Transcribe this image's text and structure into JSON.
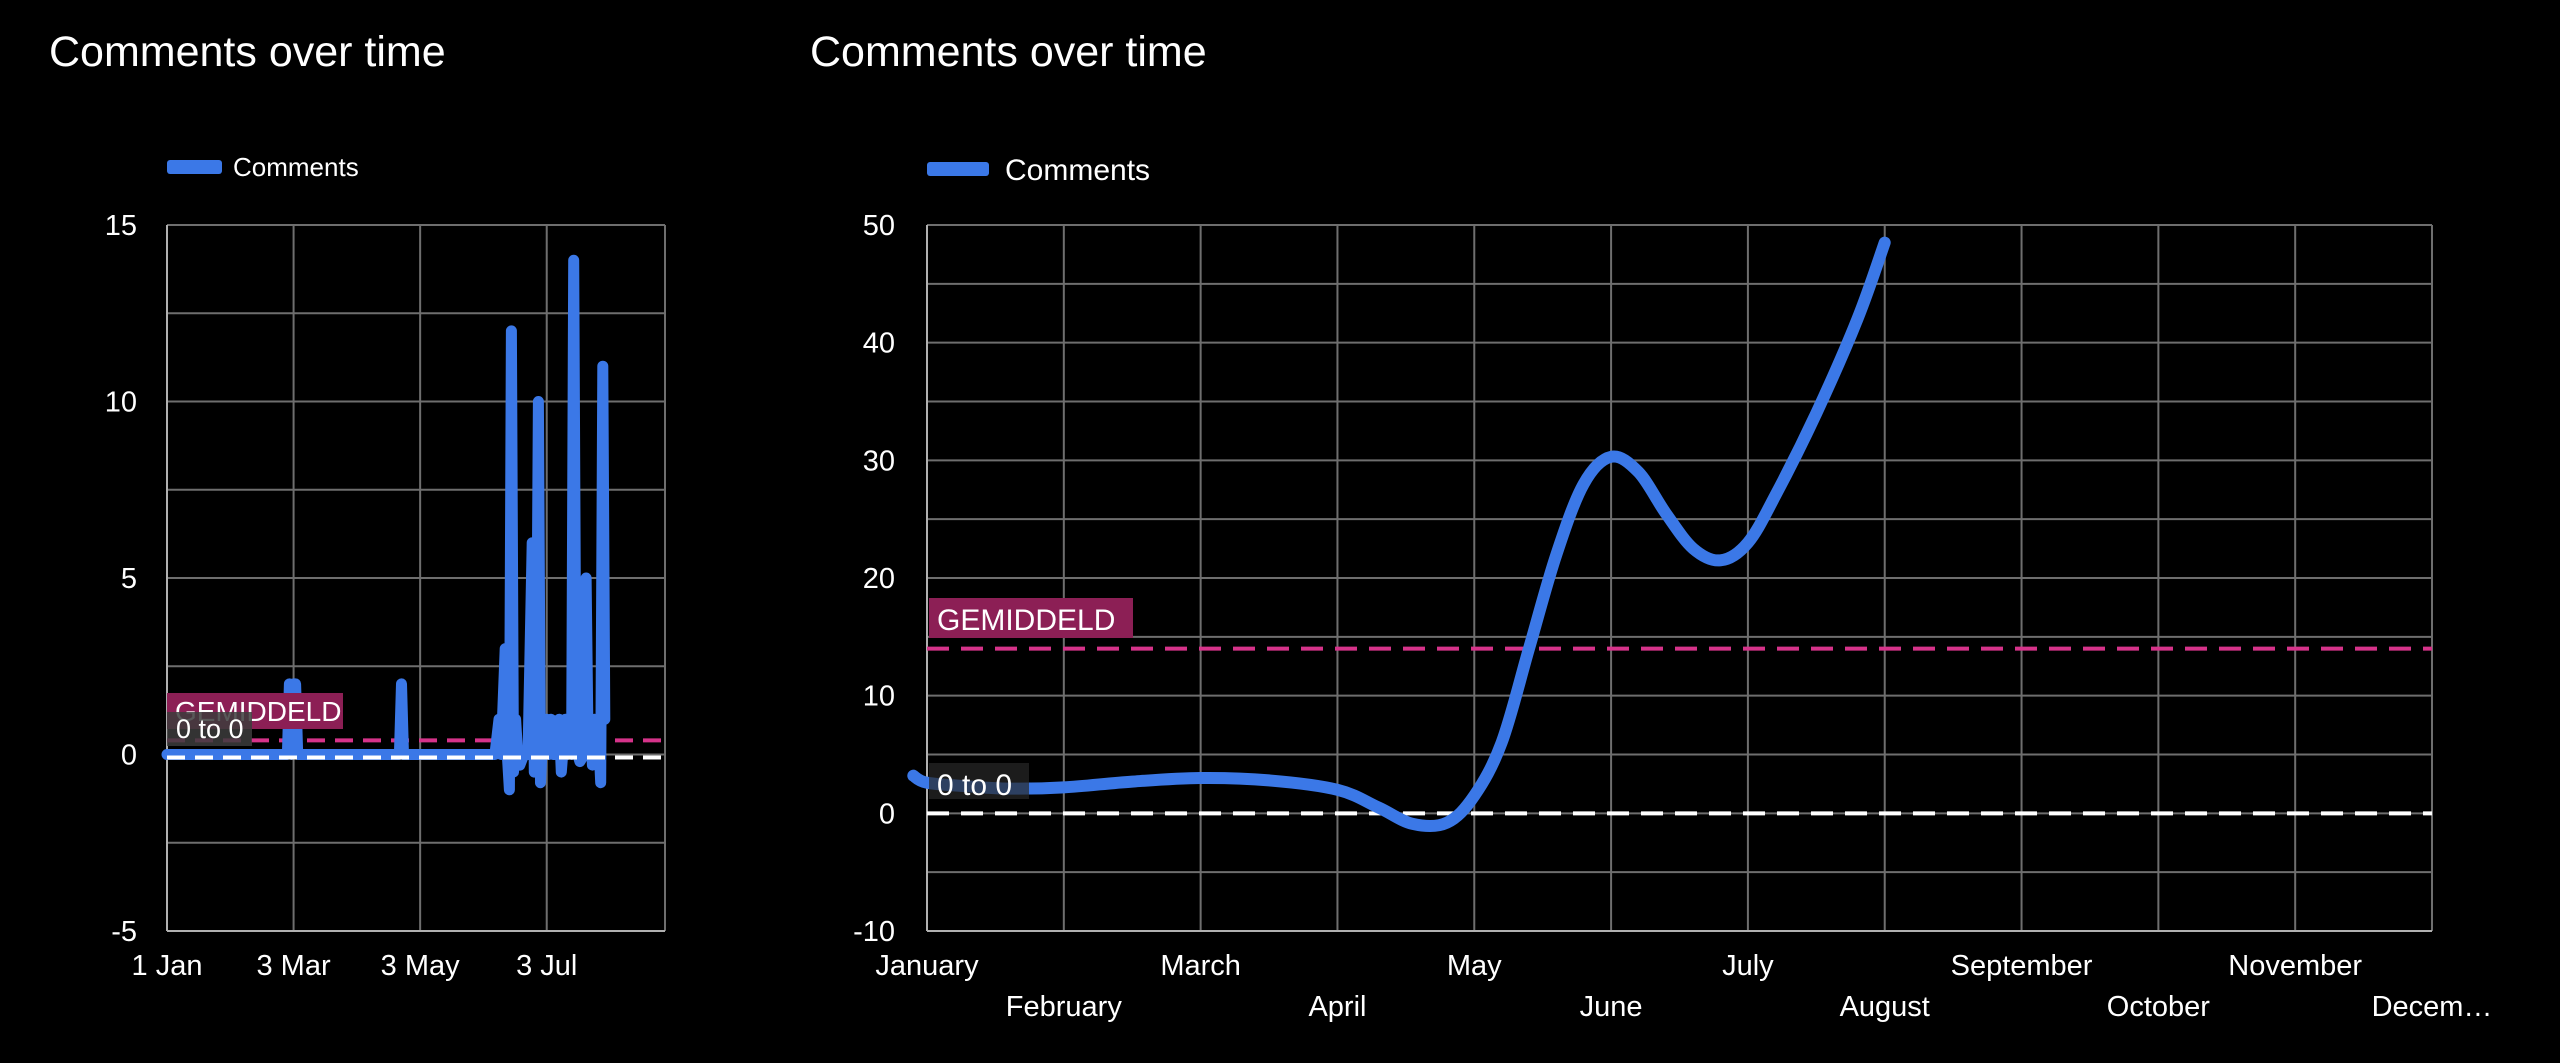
{
  "colors": {
    "background": "#000000",
    "series": "#3b78e7",
    "grid": "#6e6e6e",
    "axis": "#b0b0b0",
    "average_line": "#d6338a",
    "average_label_bg": "#8c1f55",
    "range_line": "#ffffff",
    "text": "#ffffff"
  },
  "chart_data": [
    {
      "type": "line",
      "title": "Comments over time",
      "legend": [
        "Comments"
      ],
      "legend_position": "top-left",
      "grid": true,
      "x_type": "date",
      "x_tick_labels": [
        "1 Jan",
        "3 Mar",
        "3 May",
        "3 Jul"
      ],
      "x_ticks": [
        "2023-01-01",
        "2023-03-03",
        "2023-05-03",
        "2023-07-03"
      ],
      "xlim": [
        "2023-01-01",
        "2023-08-29"
      ],
      "ylim": [
        -5,
        15
      ],
      "y_ticks": [
        -5,
        0,
        5,
        10,
        15
      ],
      "y_tick_labels": [
        "-5",
        "0",
        "5",
        "10",
        "15"
      ],
      "series": [
        {
          "name": "Comments",
          "points": [
            [
              "2023-01-01",
              0
            ],
            [
              "2023-01-08",
              0
            ],
            [
              "2023-01-14",
              0
            ],
            [
              "2023-01-20",
              0
            ],
            [
              "2023-01-25",
              0
            ],
            [
              "2023-01-30",
              0
            ],
            [
              "2023-02-05",
              0
            ],
            [
              "2023-02-12",
              0
            ],
            [
              "2023-02-18",
              0
            ],
            [
              "2023-02-24",
              0
            ],
            [
              "2023-02-28",
              0
            ],
            [
              "2023-03-01",
              2
            ],
            [
              "2023-03-02",
              0
            ],
            [
              "2023-03-03",
              2
            ],
            [
              "2023-03-04",
              2
            ],
            [
              "2023-03-05",
              0
            ],
            [
              "2023-03-12",
              0
            ],
            [
              "2023-03-20",
              0
            ],
            [
              "2023-03-28",
              0
            ],
            [
              "2023-04-05",
              0
            ],
            [
              "2023-04-14",
              0
            ],
            [
              "2023-04-23",
              0
            ],
            [
              "2023-04-24",
              2
            ],
            [
              "2023-04-25",
              0
            ],
            [
              "2023-05-03",
              0
            ],
            [
              "2023-05-12",
              0
            ],
            [
              "2023-05-22",
              0
            ],
            [
              "2023-06-01",
              0
            ],
            [
              "2023-06-08",
              0
            ],
            [
              "2023-06-10",
              1
            ],
            [
              "2023-06-11",
              0
            ],
            [
              "2023-06-13",
              3
            ],
            [
              "2023-06-14",
              0
            ],
            [
              "2023-06-15",
              -1
            ],
            [
              "2023-06-16",
              12
            ],
            [
              "2023-06-17",
              -0.5
            ],
            [
              "2023-06-18",
              1
            ],
            [
              "2023-06-19",
              0
            ],
            [
              "2023-06-20",
              -0.3
            ],
            [
              "2023-06-22",
              0
            ],
            [
              "2023-06-24",
              0
            ],
            [
              "2023-06-26",
              6
            ],
            [
              "2023-06-27",
              -0.5
            ],
            [
              "2023-06-28",
              1
            ],
            [
              "2023-06-29",
              10
            ],
            [
              "2023-06-30",
              -0.8
            ],
            [
              "2023-07-01",
              0.5
            ],
            [
              "2023-07-03",
              1
            ],
            [
              "2023-07-04",
              0
            ],
            [
              "2023-07-05",
              1
            ],
            [
              "2023-07-06",
              0
            ],
            [
              "2023-07-08",
              0
            ],
            [
              "2023-07-09",
              1
            ],
            [
              "2023-07-10",
              -0.5
            ],
            [
              "2023-07-12",
              1
            ],
            [
              "2023-07-13",
              0
            ],
            [
              "2023-07-14",
              0.8
            ],
            [
              "2023-07-15",
              0
            ],
            [
              "2023-07-16",
              14
            ],
            [
              "2023-07-17",
              2
            ],
            [
              "2023-07-18",
              0
            ],
            [
              "2023-07-19",
              -0.2
            ],
            [
              "2023-07-21",
              0
            ],
            [
              "2023-07-22",
              5
            ],
            [
              "2023-07-23",
              0
            ],
            [
              "2023-07-24",
              1
            ],
            [
              "2023-07-25",
              -0.3
            ],
            [
              "2023-07-26",
              1
            ],
            [
              "2023-07-27",
              0
            ],
            [
              "2023-07-28",
              0.5
            ],
            [
              "2023-07-29",
              -0.8
            ],
            [
              "2023-07-30",
              11
            ],
            [
              "2023-07-31",
              1
            ]
          ]
        }
      ],
      "reference_lines": [
        {
          "label": "GEMIDDELD",
          "value": 0.4,
          "style": "dashed"
        },
        {
          "label": "0 to 0",
          "value": 0,
          "style": "dashed"
        }
      ]
    },
    {
      "type": "line",
      "title": "Comments over time",
      "legend": [
        "Comments"
      ],
      "legend_position": "top-left",
      "grid": true,
      "categories": [
        "January",
        "February",
        "March",
        "April",
        "May",
        "June",
        "July",
        "August",
        "September",
        "October",
        "November",
        "December"
      ],
      "x_tick_labels": [
        "January",
        "February",
        "March",
        "April",
        "May",
        "June",
        "July",
        "August",
        "September",
        "October",
        "November",
        "Decem…"
      ],
      "ylim": [
        -10,
        50
      ],
      "y_ticks": [
        -10,
        0,
        10,
        20,
        30,
        40,
        50
      ],
      "y_tick_labels": [
        "-10",
        "0",
        "10",
        "20",
        "30",
        "40",
        "50"
      ],
      "series": [
        {
          "name": "Comments",
          "points": [
            [
              -0.1,
              3.2
            ],
            [
              0,
              2.6
            ],
            [
              0.3,
              2.3
            ],
            [
              0.6,
              2.1
            ],
            [
              1,
              2.2
            ],
            [
              1.5,
              2.7
            ],
            [
              2,
              3.0
            ],
            [
              2.5,
              2.8
            ],
            [
              3,
              2.0
            ],
            [
              3.3,
              0.5
            ],
            [
              3.55,
              -0.9
            ],
            [
              3.8,
              -0.8
            ],
            [
              4,
              1.5
            ],
            [
              4.2,
              6
            ],
            [
              4.4,
              14
            ],
            [
              4.6,
              22
            ],
            [
              4.8,
              28
            ],
            [
              5,
              30.3
            ],
            [
              5.2,
              29
            ],
            [
              5.4,
              25.5
            ],
            [
              5.6,
              22.5
            ],
            [
              5.8,
              21.5
            ],
            [
              6,
              23
            ],
            [
              6.2,
              27
            ],
            [
              6.5,
              34
            ],
            [
              6.8,
              42
            ],
            [
              7,
              48.5
            ]
          ]
        }
      ],
      "reference_lines": [
        {
          "label": "GEMIDDELD",
          "value": 14,
          "style": "dashed"
        },
        {
          "label": "0 to 0",
          "value": 0,
          "style": "dashed"
        }
      ]
    }
  ]
}
